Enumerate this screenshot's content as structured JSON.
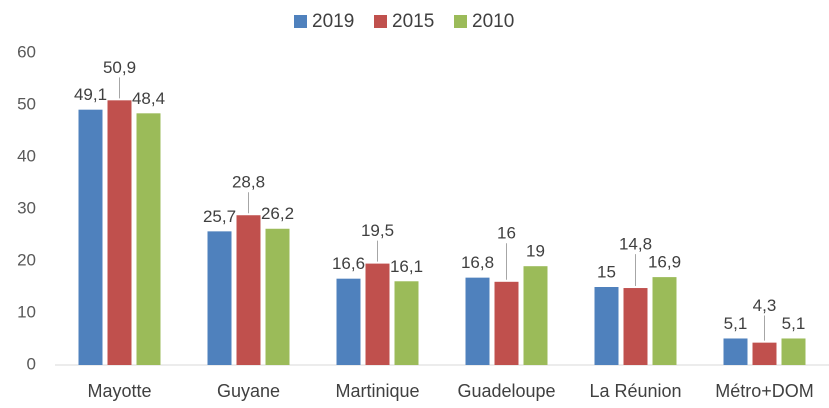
{
  "chart_data": {
    "type": "bar",
    "categories": [
      "Mayotte",
      "Guyane",
      "Martinique",
      "Guadeloupe",
      "La Réunion",
      "Métro+DOM"
    ],
    "series": [
      {
        "name": "2019",
        "color": "#4f81bd",
        "values": [
          49.1,
          25.7,
          16.6,
          16.8,
          15,
          5.1
        ],
        "value_labels": [
          "49,1",
          "25,7",
          "16,6",
          "16,8",
          "15",
          "5,1"
        ]
      },
      {
        "name": "2015",
        "color": "#c0504d",
        "values": [
          50.9,
          28.8,
          19.5,
          16,
          14.8,
          4.3
        ],
        "value_labels": [
          "50,9",
          "28,8",
          "19,5",
          "16",
          "14,8",
          "4,3"
        ]
      },
      {
        "name": "2010",
        "color": "#9bbb59",
        "values": [
          48.4,
          26.2,
          16.1,
          19,
          16.9,
          5.1
        ],
        "value_labels": [
          "48,4",
          "26,2",
          "16,1",
          "19",
          "16,9",
          "5,1"
        ]
      }
    ],
    "ylim": [
      0,
      60
    ],
    "yticks": [
      0,
      10,
      20,
      30,
      40,
      50,
      60
    ],
    "grid": false,
    "legend": "top"
  }
}
